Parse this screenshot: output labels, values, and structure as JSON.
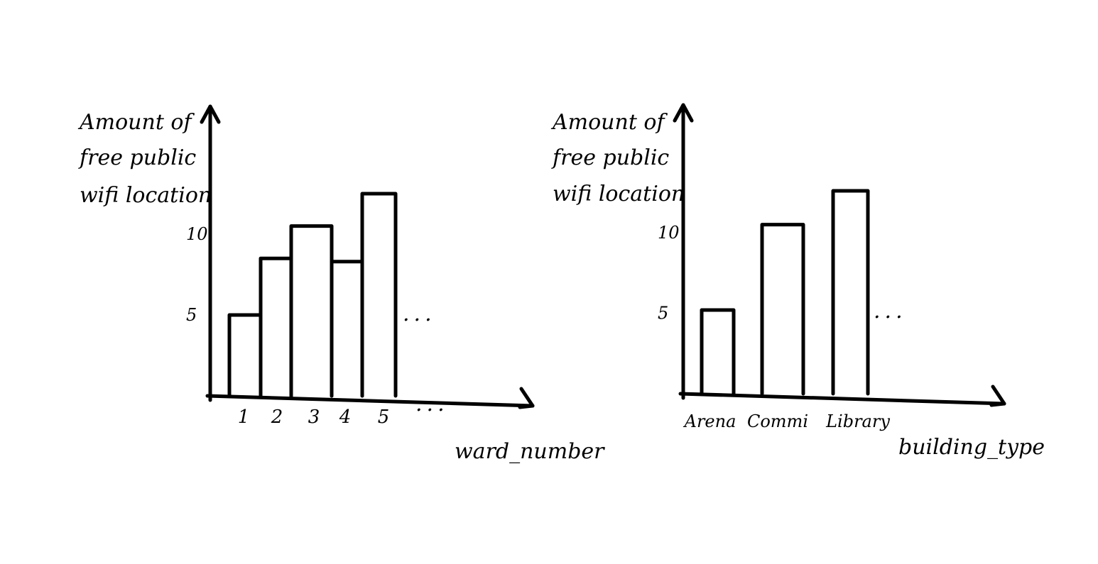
{
  "chart_data": [
    {
      "type": "bar",
      "ylabel_lines": [
        "Amount of",
        "free public",
        "wifi location"
      ],
      "xlabel": "ward_number",
      "categories": [
        "1",
        "2",
        "3",
        "4",
        "5"
      ],
      "values": [
        5,
        8.5,
        10.5,
        8.3,
        12.5
      ],
      "yticks": [
        "5",
        "10"
      ],
      "ylim": [
        0,
        18
      ],
      "ellipsis": "...",
      "grid": false
    },
    {
      "type": "bar",
      "ylabel_lines": [
        "Amount of",
        "free public",
        "wifi location"
      ],
      "xlabel": "building_type",
      "categories": [
        "Arena",
        "Commi",
        "Library"
      ],
      "values": [
        5.2,
        10.5,
        12.6
      ],
      "yticks": [
        "5",
        "10"
      ],
      "ylim": [
        0,
        18
      ],
      "ellipsis": "...",
      "grid": false
    }
  ]
}
